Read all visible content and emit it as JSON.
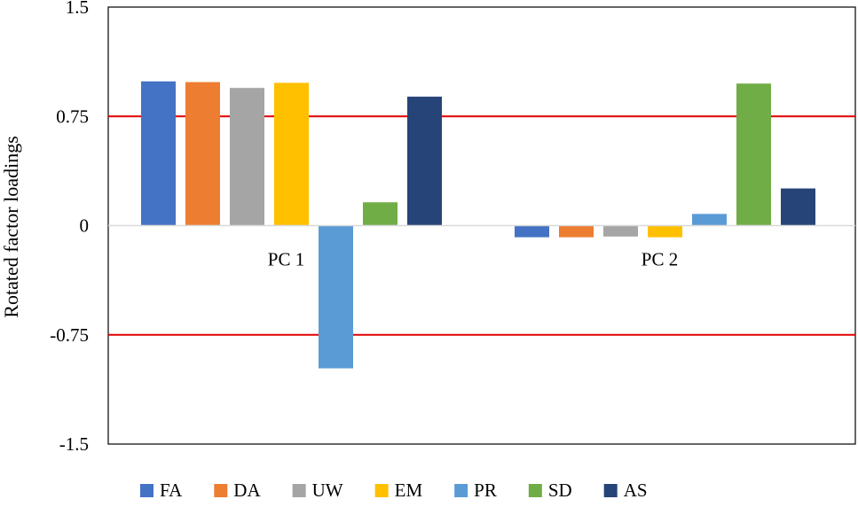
{
  "chart_data": {
    "type": "bar",
    "ylabel": "Rotated factor loadings",
    "ylim": [
      -1.5,
      1.5
    ],
    "yticks": [
      1.5,
      0.75,
      0,
      -0.75,
      -1.5
    ],
    "ytick_labels": [
      "1.5",
      "0.75",
      "0",
      "-0.75",
      "-1.5"
    ],
    "categories": [
      "PC 1",
      "PC 2"
    ],
    "series": [
      {
        "name": "FA",
        "color": "#4472C4",
        "values": [
          0.99,
          -0.08
        ]
      },
      {
        "name": "DA",
        "color": "#ED7D31",
        "values": [
          0.985,
          -0.08
        ]
      },
      {
        "name": "UW",
        "color": "#A5A5A5",
        "values": [
          0.945,
          -0.075
        ]
      },
      {
        "name": "EM",
        "color": "#FFC000",
        "values": [
          0.98,
          -0.08
        ]
      },
      {
        "name": "PR",
        "color": "#5B9BD5",
        "values": [
          -0.98,
          0.08
        ]
      },
      {
        "name": "SD",
        "color": "#70AD47",
        "values": [
          0.16,
          0.975
        ]
      },
      {
        "name": "AS",
        "color": "#264478",
        "values": [
          0.885,
          0.255
        ]
      }
    ],
    "reference_lines": [
      0.75,
      -0.75
    ],
    "reference_line_color": "#E00000",
    "grid": false,
    "legend_position": "bottom"
  }
}
